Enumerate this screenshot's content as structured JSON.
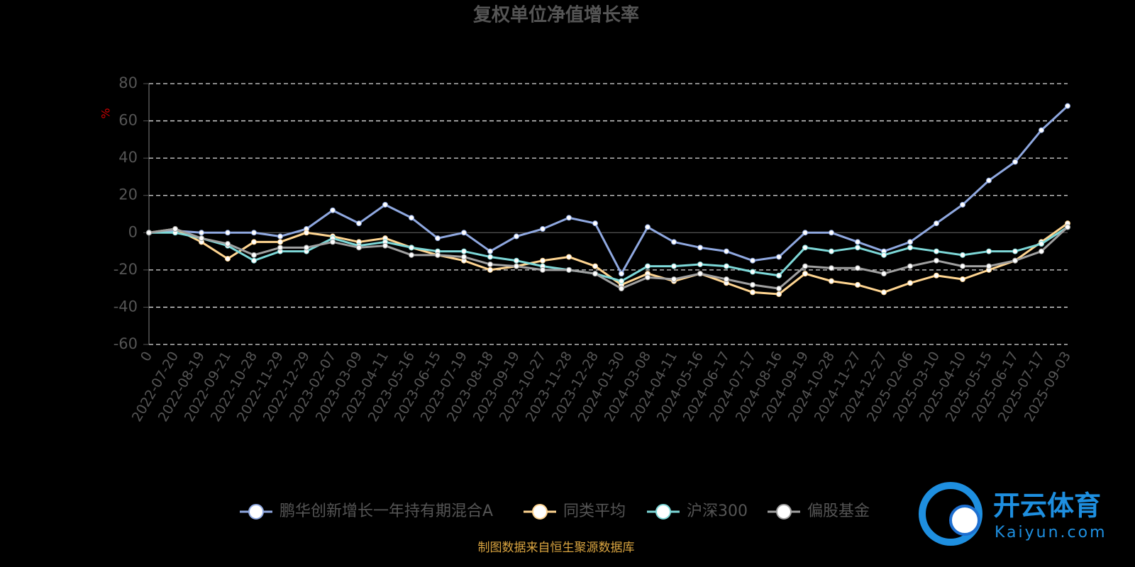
{
  "chart_data": {
    "type": "line",
    "title": "复权单位净值增长率",
    "y_label": "%",
    "categories": [
      "0",
      "2022-07-20",
      "2022-08-19",
      "2022-09-21",
      "2022-10-28",
      "2022-11-29",
      "2022-12-29",
      "2023-02-07",
      "2023-03-09",
      "2023-04-11",
      "2023-05-16",
      "2023-06-15",
      "2023-07-19",
      "2023-08-18",
      "2023-09-19",
      "2023-10-27",
      "2023-11-28",
      "2023-12-28",
      "2024-01-30",
      "2024-03-08",
      "2024-04-11",
      "2024-05-16",
      "2024-06-17",
      "2024-07-17",
      "2024-08-16",
      "2024-09-19",
      "2024-10-28",
      "2024-11-27",
      "2024-12-27",
      "2025-02-06",
      "2025-03-10",
      "2025-04-10",
      "2025-05-15",
      "2025-06-17",
      "2025-07-17",
      "2025-09-03"
    ],
    "series": [
      {
        "name": "鹏华创新增长一年持有期混合A",
        "color": "#8fa8e0",
        "values": [
          0,
          1,
          0,
          0,
          0,
          -2,
          2,
          12,
          5,
          15,
          8,
          -3,
          0,
          -10,
          -2,
          2,
          8,
          5,
          -22,
          3,
          -5,
          -8,
          -10,
          -15,
          -13,
          0,
          0,
          -5,
          -10,
          -5,
          5,
          15,
          28,
          38,
          55,
          68
        ]
      },
      {
        "name": "同类平均",
        "color": "#ffd591",
        "values": [
          0,
          2,
          -5,
          -14,
          -5,
          -5,
          0,
          -2,
          -5,
          -3,
          -8,
          -12,
          -15,
          -20,
          -18,
          -15,
          -13,
          -18,
          -28,
          -22,
          -26,
          -22,
          -27,
          -32,
          -33,
          -22,
          -26,
          -28,
          -32,
          -27,
          -23,
          -25,
          -20,
          -15,
          -5,
          5
        ]
      },
      {
        "name": "沪深300",
        "color": "#7dd8d8",
        "values": [
          0,
          0,
          -3,
          -7,
          -15,
          -10,
          -10,
          -3,
          -7,
          -5,
          -8,
          -10,
          -10,
          -13,
          -15,
          -18,
          -20,
          -22,
          -26,
          -18,
          -18,
          -17,
          -18,
          -21,
          -23,
          -8,
          -10,
          -8,
          -12,
          -8,
          -10,
          -12,
          -10,
          -10,
          -6,
          3
        ]
      },
      {
        "name": "偏股基金",
        "color": "#a0a0a0",
        "values": [
          0,
          2,
          -3,
          -6,
          -12,
          -8,
          -8,
          -5,
          -8,
          -7,
          -12,
          -12,
          -13,
          -17,
          -18,
          -20,
          -20,
          -22,
          -30,
          -24,
          -25,
          -22,
          -25,
          -28,
          -30,
          -18,
          -19,
          -19,
          -22,
          -18,
          -15,
          -18,
          -18,
          -15,
          -10,
          3
        ]
      }
    ],
    "ylim": [
      -60,
      80
    ],
    "yticks": [
      -60,
      -40,
      -20,
      0,
      20,
      40,
      60,
      80
    ],
    "grid": true,
    "legend": "bottom",
    "source": "制图数据来自恒生聚源数据库"
  },
  "watermark": {
    "name": "开云体育",
    "site": "Kaiyun.com"
  }
}
